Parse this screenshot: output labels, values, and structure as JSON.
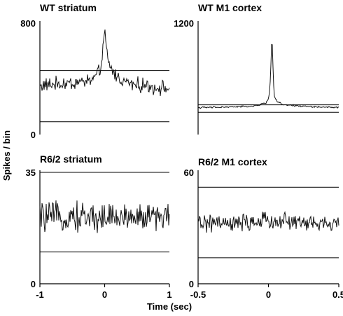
{
  "figure": {
    "ylabel": "Spikes / bin",
    "xlabel": "Time (sec)"
  },
  "chart_data": [
    {
      "type": "line",
      "title": "WT striatum",
      "ylim": [
        0,
        800
      ],
      "xlim": [
        -1,
        1
      ],
      "y_tick_labels": [
        "0",
        "800"
      ],
      "x_tick_labels": [],
      "reference_lines": [
        460,
        92
      ],
      "series": [
        {
          "x": [
            -1.0,
            -0.8,
            -0.6,
            -0.4,
            -0.2,
            -0.1,
            -0.05,
            -0.02,
            0.0,
            0.02,
            0.05,
            0.1,
            0.2,
            0.3,
            0.4,
            0.6,
            0.8,
            1.0
          ],
          "values": [
            350,
            360,
            365,
            375,
            390,
            430,
            510,
            660,
            730,
            640,
            530,
            470,
            410,
            385,
            365,
            350,
            340,
            330
          ],
          "noise": 45
        }
      ],
      "grid": false
    },
    {
      "type": "line",
      "title": "WT M1 cortex",
      "ylim": [
        0,
        1200
      ],
      "xlim": [
        -0.5,
        0.5
      ],
      "y_tick_labels": [
        "1200"
      ],
      "x_tick_labels": [],
      "reference_lines": [
        320,
        240
      ],
      "series": [
        {
          "x": [
            -0.5,
            -0.3,
            -0.1,
            -0.02,
            0.0,
            0.01,
            0.02,
            0.025,
            0.03,
            0.04,
            0.06,
            0.1,
            0.3,
            0.5
          ],
          "values": [
            290,
            295,
            305,
            340,
            380,
            480,
            850,
            1110,
            820,
            420,
            360,
            320,
            300,
            290
          ],
          "noise": 8
        }
      ],
      "grid": false
    },
    {
      "type": "line",
      "title": "R6/2 striatum",
      "ylim": [
        0,
        35
      ],
      "xlim": [
        -1,
        1
      ],
      "y_tick_labels": [
        "0",
        "35"
      ],
      "x_tick_labels": [
        "-1",
        "0",
        "1"
      ],
      "reference_lines": [
        35,
        10
      ],
      "series": [
        {
          "x": [
            -1.0,
            1.0
          ],
          "values": [
            21,
            21
          ],
          "noise": 4
        }
      ],
      "grid": false
    },
    {
      "type": "line",
      "title": "R6/2 M1 cortex",
      "ylim": [
        0,
        60
      ],
      "xlim": [
        -0.5,
        0.5
      ],
      "y_tick_labels": [
        "0",
        "60"
      ],
      "x_tick_labels": [
        "-0.5",
        "0",
        "0.5"
      ],
      "reference_lines": [
        52,
        14
      ],
      "series": [
        {
          "x": [
            -0.5,
            -0.25,
            0.0,
            0.25,
            0.5
          ],
          "values": [
            33,
            32,
            34,
            33,
            32
          ],
          "noise": 4
        }
      ],
      "grid": false
    }
  ]
}
